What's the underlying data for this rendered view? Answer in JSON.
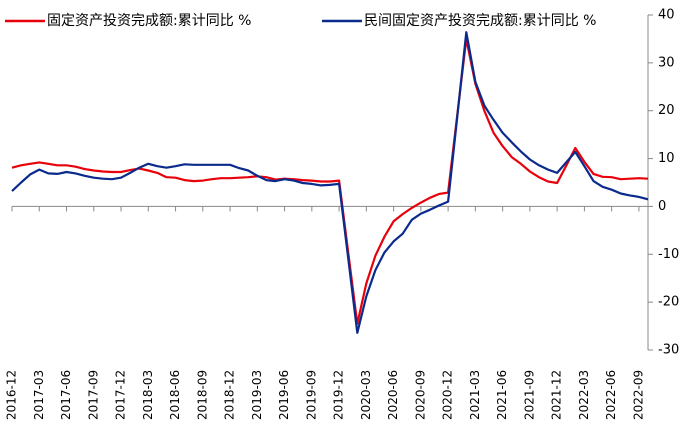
{
  "chart_data": {
    "type": "line",
    "categories": [
      "2016-12",
      null,
      null,
      "2017-03",
      null,
      null,
      "2017-06",
      null,
      null,
      "2017-09",
      null,
      null,
      "2017-12",
      null,
      null,
      "2018-03",
      null,
      null,
      "2018-06",
      null,
      null,
      "2018-09",
      null,
      null,
      "2018-12",
      null,
      null,
      "2019-03",
      null,
      null,
      "2019-06",
      null,
      null,
      "2019-09",
      null,
      null,
      "2019-12",
      null,
      null,
      "2020-03",
      null,
      null,
      "2020-06",
      null,
      null,
      "2020-09",
      null,
      null,
      "2020-12",
      null,
      null,
      "2021-03",
      null,
      null,
      "2021-06",
      null,
      null,
      "2021-09",
      null,
      null,
      "2021-12",
      null,
      null,
      "2022-03",
      null,
      null,
      "2022-06",
      null,
      null,
      "2022-09",
      null
    ],
    "series": [
      {
        "name": "固定资产投资完成额:累计同比 %",
        "color": "#e8000b",
        "values": [
          8.1,
          8.6,
          8.9,
          9.2,
          8.9,
          8.6,
          8.6,
          8.3,
          7.8,
          7.5,
          7.3,
          7.2,
          7.2,
          7.6,
          7.9,
          7.5,
          7.0,
          6.1,
          6.0,
          5.5,
          5.3,
          5.4,
          5.7,
          5.9,
          5.9,
          6.0,
          6.1,
          6.3,
          6.1,
          5.6,
          5.8,
          5.7,
          5.5,
          5.4,
          5.2,
          5.2,
          5.4,
          -9.6,
          -24.5,
          -16.1,
          -10.3,
          -6.3,
          -3.1,
          -1.6,
          -0.3,
          0.8,
          1.8,
          2.6,
          2.9,
          19.0,
          35.0,
          25.6,
          19.9,
          15.4,
          12.6,
          10.3,
          8.9,
          7.3,
          6.1,
          5.2,
          4.9,
          8.5,
          12.2,
          9.3,
          6.8,
          6.2,
          6.1,
          5.7,
          5.8,
          5.9,
          5.8
        ]
      },
      {
        "name": "民间固定资产投资完成额:累计同比 %",
        "color": "#0a2a8c",
        "values": [
          3.2,
          5.0,
          6.7,
          7.7,
          6.9,
          6.8,
          7.2,
          6.9,
          6.4,
          6.0,
          5.8,
          5.7,
          6.0,
          7.0,
          8.1,
          8.9,
          8.4,
          8.1,
          8.4,
          8.8,
          8.7,
          8.7,
          8.7,
          8.7,
          8.7,
          8.0,
          7.5,
          6.4,
          5.5,
          5.3,
          5.7,
          5.4,
          4.9,
          4.7,
          4.4,
          4.5,
          4.7,
          -10.8,
          -26.4,
          -18.8,
          -13.3,
          -9.6,
          -7.3,
          -5.7,
          -2.8,
          -1.5,
          -0.7,
          0.2,
          1.0,
          18.6,
          36.4,
          26.0,
          21.0,
          18.1,
          15.4,
          13.4,
          11.5,
          9.8,
          8.6,
          7.7,
          7.0,
          9.2,
          11.4,
          8.4,
          5.3,
          4.1,
          3.5,
          2.7,
          2.3,
          2.0,
          1.5
        ]
      }
    ],
    "ylim": [
      -30,
      40
    ],
    "yticks": [
      -30,
      -20,
      -10,
      0,
      10,
      20,
      30,
      40
    ],
    "grid": false
  }
}
